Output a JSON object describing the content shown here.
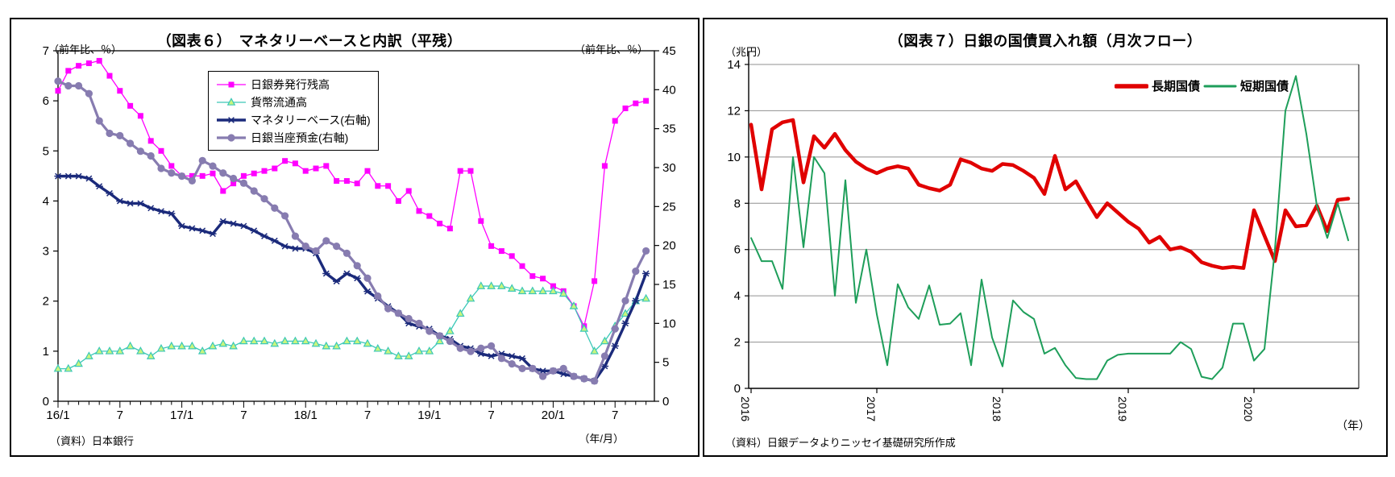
{
  "page": {
    "background": "#ffffff",
    "layout": "two-chart-report-strip"
  },
  "chart_data": [
    {
      "type": "line",
      "title": "（図表６）　マネタリーベースと内訳（平残）",
      "ylabel_left": "（前年比、％）",
      "ylabel_right": "（前年比、％）",
      "xlabel": "（年/月）",
      "source": "（資料）日本銀行",
      "ylim_left": [
        0,
        7
      ],
      "ylim_right": [
        0,
        45
      ],
      "y_ticks_left": [
        0,
        1,
        2,
        3,
        4,
        5,
        6,
        7
      ],
      "y_ticks_right": [
        0,
        5,
        10,
        15,
        20,
        25,
        30,
        35,
        40,
        45
      ],
      "x_tick_labels": [
        "16/1",
        "7",
        "17/1",
        "7",
        "18/1",
        "7",
        "19/1",
        "7",
        "20/1",
        "7"
      ],
      "x_tick_month_index": [
        0,
        6,
        12,
        18,
        24,
        30,
        36,
        42,
        48,
        54
      ],
      "x_range": "2016/1 - 2020/10, monthly (58 points)",
      "grid": false,
      "legend_position": "top-center-box",
      "series": [
        {
          "id": "banknotes-outstanding",
          "name": "日銀券発行残高",
          "axis": "left",
          "color": "#FF00FF",
          "marker": "square",
          "line_width": 1.3,
          "values": [
            6.2,
            6.6,
            6.7,
            6.75,
            6.8,
            6.5,
            6.2,
            5.9,
            5.7,
            5.2,
            5.0,
            4.7,
            4.5,
            4.5,
            4.5,
            4.55,
            4.2,
            4.35,
            4.5,
            4.55,
            4.6,
            4.65,
            4.8,
            4.75,
            4.6,
            4.65,
            4.7,
            4.4,
            4.4,
            4.35,
            4.6,
            4.3,
            4.3,
            4.0,
            4.2,
            3.8,
            3.7,
            3.55,
            3.45,
            4.6,
            4.6,
            3.6,
            3.1,
            3.0,
            2.9,
            2.7,
            2.5,
            2.45,
            2.3,
            2.2,
            1.9,
            1.5,
            2.4,
            4.7,
            5.6,
            5.85,
            5.95,
            6.0
          ]
        },
        {
          "id": "coins-in-circulation",
          "name": "貨幣流通高",
          "axis": "left",
          "color": "#3CC8B8",
          "marker": "triangle",
          "marker_fill": "#C9F57C",
          "line_width": 1.3,
          "values": [
            0.65,
            0.65,
            0.75,
            0.9,
            1.0,
            1.0,
            1.0,
            1.1,
            1.0,
            0.9,
            1.05,
            1.1,
            1.1,
            1.1,
            1.0,
            1.1,
            1.15,
            1.1,
            1.2,
            1.2,
            1.2,
            1.15,
            1.2,
            1.2,
            1.2,
            1.15,
            1.1,
            1.1,
            1.2,
            1.2,
            1.15,
            1.05,
            1.0,
            0.9,
            0.9,
            1.0,
            1.0,
            1.2,
            1.4,
            1.75,
            2.05,
            2.3,
            2.3,
            2.3,
            2.25,
            2.2,
            2.2,
            2.2,
            2.2,
            2.15,
            1.9,
            1.45,
            1.0,
            1.2,
            1.5,
            1.75,
            2.0,
            2.05
          ]
        },
        {
          "id": "monetary-base",
          "name": "マネタリーベース(右軸)",
          "axis": "right",
          "color": "#1B2A7B",
          "marker": "star",
          "line_width": 3.4,
          "values": [
            28.9,
            28.9,
            28.9,
            28.6,
            27.6,
            26.7,
            25.7,
            25.4,
            25.4,
            24.8,
            24.4,
            24.1,
            22.5,
            22.2,
            21.9,
            21.5,
            23.1,
            22.8,
            22.5,
            21.9,
            21.2,
            20.6,
            19.9,
            19.6,
            19.6,
            19.0,
            16.4,
            15.4,
            16.4,
            15.8,
            14.1,
            13.2,
            12.2,
            11.3,
            10.0,
            9.6,
            9.3,
            8.4,
            8.0,
            7.1,
            6.8,
            6.1,
            5.8,
            6.1,
            5.8,
            5.5,
            4.2,
            3.9,
            3.9,
            3.5,
            3.2,
            2.9,
            2.6,
            4.5,
            7.1,
            10.0,
            12.9,
            16.4
          ]
        },
        {
          "id": "boj-current-account",
          "name": "日銀当座預金(右軸)",
          "axis": "right",
          "color": "#877CB0",
          "marker": "circle",
          "line_width": 3.2,
          "values": [
            41.1,
            40.5,
            40.5,
            39.5,
            36.0,
            34.4,
            34.1,
            33.1,
            32.1,
            31.5,
            29.9,
            29.3,
            28.9,
            28.3,
            30.9,
            30.2,
            29.3,
            28.6,
            28.0,
            27.0,
            26.0,
            24.8,
            23.8,
            21.2,
            19.9,
            19.3,
            20.6,
            19.9,
            19.0,
            17.4,
            15.8,
            13.5,
            11.9,
            11.3,
            10.6,
            10.0,
            9.0,
            8.4,
            7.7,
            6.8,
            6.4,
            6.8,
            7.1,
            5.5,
            4.8,
            4.2,
            4.2,
            3.2,
            3.9,
            4.2,
            3.2,
            2.9,
            2.6,
            5.8,
            9.3,
            12.9,
            16.7,
            19.3
          ]
        }
      ]
    },
    {
      "type": "line",
      "title": "（図表７）日銀の国債買入れ額（月次フロー）",
      "ylabel": "（兆円）",
      "xlabel": "（年）",
      "source": "（資料）日銀データよりニッセイ基礎研究所作成",
      "ylim": [
        0,
        14
      ],
      "y_ticks": [
        0,
        2,
        4,
        6,
        8,
        10,
        12,
        14
      ],
      "x_tick_labels": [
        "2016",
        "2017",
        "2018",
        "2019",
        "2020"
      ],
      "x_tick_month_index": [
        0,
        12,
        24,
        36,
        48
      ],
      "x_range": "2016/1 - 2020/10, monthly (58 points)",
      "grid": true,
      "grid_color": "#909090",
      "legend_position": "top-right-inline",
      "series": [
        {
          "id": "long-term-jgb",
          "name": "長期国債",
          "color": "#E00000",
          "line_width": 4.5,
          "values": [
            11.4,
            8.6,
            11.2,
            11.5,
            11.6,
            8.9,
            10.9,
            10.4,
            11.0,
            10.3,
            9.8,
            9.5,
            9.3,
            9.5,
            9.6,
            9.5,
            8.8,
            8.65,
            8.55,
            8.8,
            9.9,
            9.75,
            9.5,
            9.4,
            9.7,
            9.65,
            9.4,
            9.1,
            8.4,
            10.05,
            8.6,
            8.95,
            8.15,
            7.4,
            8.0,
            7.6,
            7.2,
            6.9,
            6.3,
            6.55,
            6.0,
            6.1,
            5.9,
            5.45,
            5.3,
            5.2,
            5.25,
            5.2,
            7.7,
            6.6,
            5.5,
            7.7,
            7.0,
            7.05,
            7.9,
            6.8,
            8.15,
            8.2
          ]
        },
        {
          "id": "short-term-jgb",
          "name": "短期国債",
          "color": "#1E9E5A",
          "line_width": 2,
          "values": [
            6.5,
            5.5,
            5.5,
            4.3,
            10.0,
            6.1,
            10.0,
            9.3,
            4.0,
            9.0,
            3.7,
            6.0,
            3.2,
            1.0,
            4.5,
            3.5,
            3.0,
            4.45,
            2.75,
            2.8,
            3.25,
            1.0,
            4.7,
            2.2,
            0.95,
            3.8,
            3.3,
            3.0,
            1.5,
            1.75,
            1.0,
            0.45,
            0.4,
            0.4,
            1.2,
            1.45,
            1.5,
            1.5,
            1.5,
            1.5,
            1.5,
            2.0,
            1.7,
            0.5,
            0.4,
            0.9,
            2.8,
            2.8,
            1.2,
            1.7,
            6.0,
            12.0,
            13.5,
            11.0,
            7.9,
            6.5,
            8.0,
            6.4
          ]
        }
      ]
    }
  ]
}
